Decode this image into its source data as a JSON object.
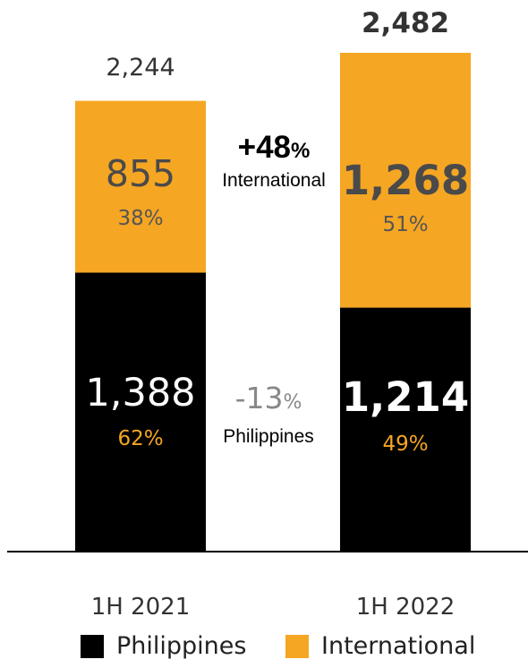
{
  "chart_data": {
    "type": "bar",
    "stacked": true,
    "categories": [
      "1H 2021",
      "1H 2022"
    ],
    "series": [
      {
        "name": "Philippines",
        "values": [
          1388,
          1214
        ],
        "shares": [
          "62%",
          "49%"
        ],
        "color": "#000000"
      },
      {
        "name": "International",
        "values": [
          855,
          1268
        ],
        "shares": [
          "38%",
          "51%"
        ],
        "color": "#F5A623"
      }
    ],
    "value_labels": {
      "Philippines": [
        "1,388",
        "1,214"
      ],
      "International": [
        "855",
        "1,268"
      ]
    },
    "totals": [
      "2,244",
      "2,482"
    ],
    "annotations": [
      {
        "change": "+48",
        "unit": "%",
        "label": "International"
      },
      {
        "change": "-13",
        "unit": "%",
        "label": "Philippines"
      }
    ],
    "legend": [
      "Philippines",
      "International"
    ],
    "legend_position": "bottom",
    "grid": false,
    "colors": {
      "philippines": "#000000",
      "international": "#F5A623",
      "share_on_black": "#F5A623",
      "share_on_orange": "#555555",
      "decline": "#888888"
    }
  }
}
